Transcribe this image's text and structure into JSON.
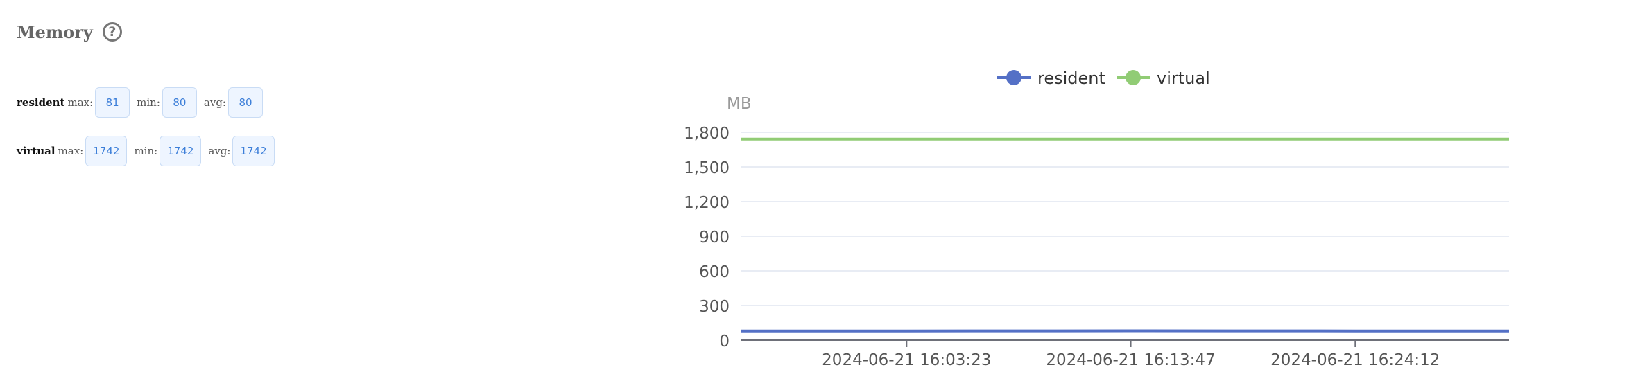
{
  "panel": {
    "title": "Memory",
    "help_icon": "question-circle-icon"
  },
  "stats": [
    {
      "series": "resident",
      "max_label": "max:",
      "max": "81",
      "min_label": "min:",
      "min": "80",
      "avg_label": "avg:",
      "avg": "80"
    },
    {
      "series": "virtual",
      "max_label": "max:",
      "max": "1742",
      "min_label": "min:",
      "min": "1742",
      "avg_label": "avg:",
      "avg": "1742"
    }
  ],
  "chart_data": {
    "type": "line",
    "title": "",
    "xlabel": "",
    "ylabel": "MB",
    "ylim": [
      0,
      1800
    ],
    "yticks": [
      0,
      300,
      600,
      900,
      1200,
      1500,
      1800
    ],
    "ytick_labels": [
      "0",
      "300",
      "600",
      "900",
      "1,200",
      "1,500",
      "1,800"
    ],
    "x": [
      "2024-06-21 15:55:41",
      "2024-06-21 16:03:23",
      "2024-06-21 16:13:47",
      "2024-06-21 16:24:12",
      "2024-06-21 16:31:20"
    ],
    "xtick_labels": [
      "2024-06-21 16:03:23",
      "2024-06-21 16:13:47",
      "2024-06-21 16:24:12"
    ],
    "legend_position": "top-center",
    "grid": true,
    "series": [
      {
        "name": "resident",
        "color": "#5470c6",
        "values": [
          80,
          80,
          81,
          80,
          80
        ]
      },
      {
        "name": "virtual",
        "color": "#91cc75",
        "values": [
          1742,
          1742,
          1742,
          1742,
          1742
        ]
      }
    ]
  }
}
